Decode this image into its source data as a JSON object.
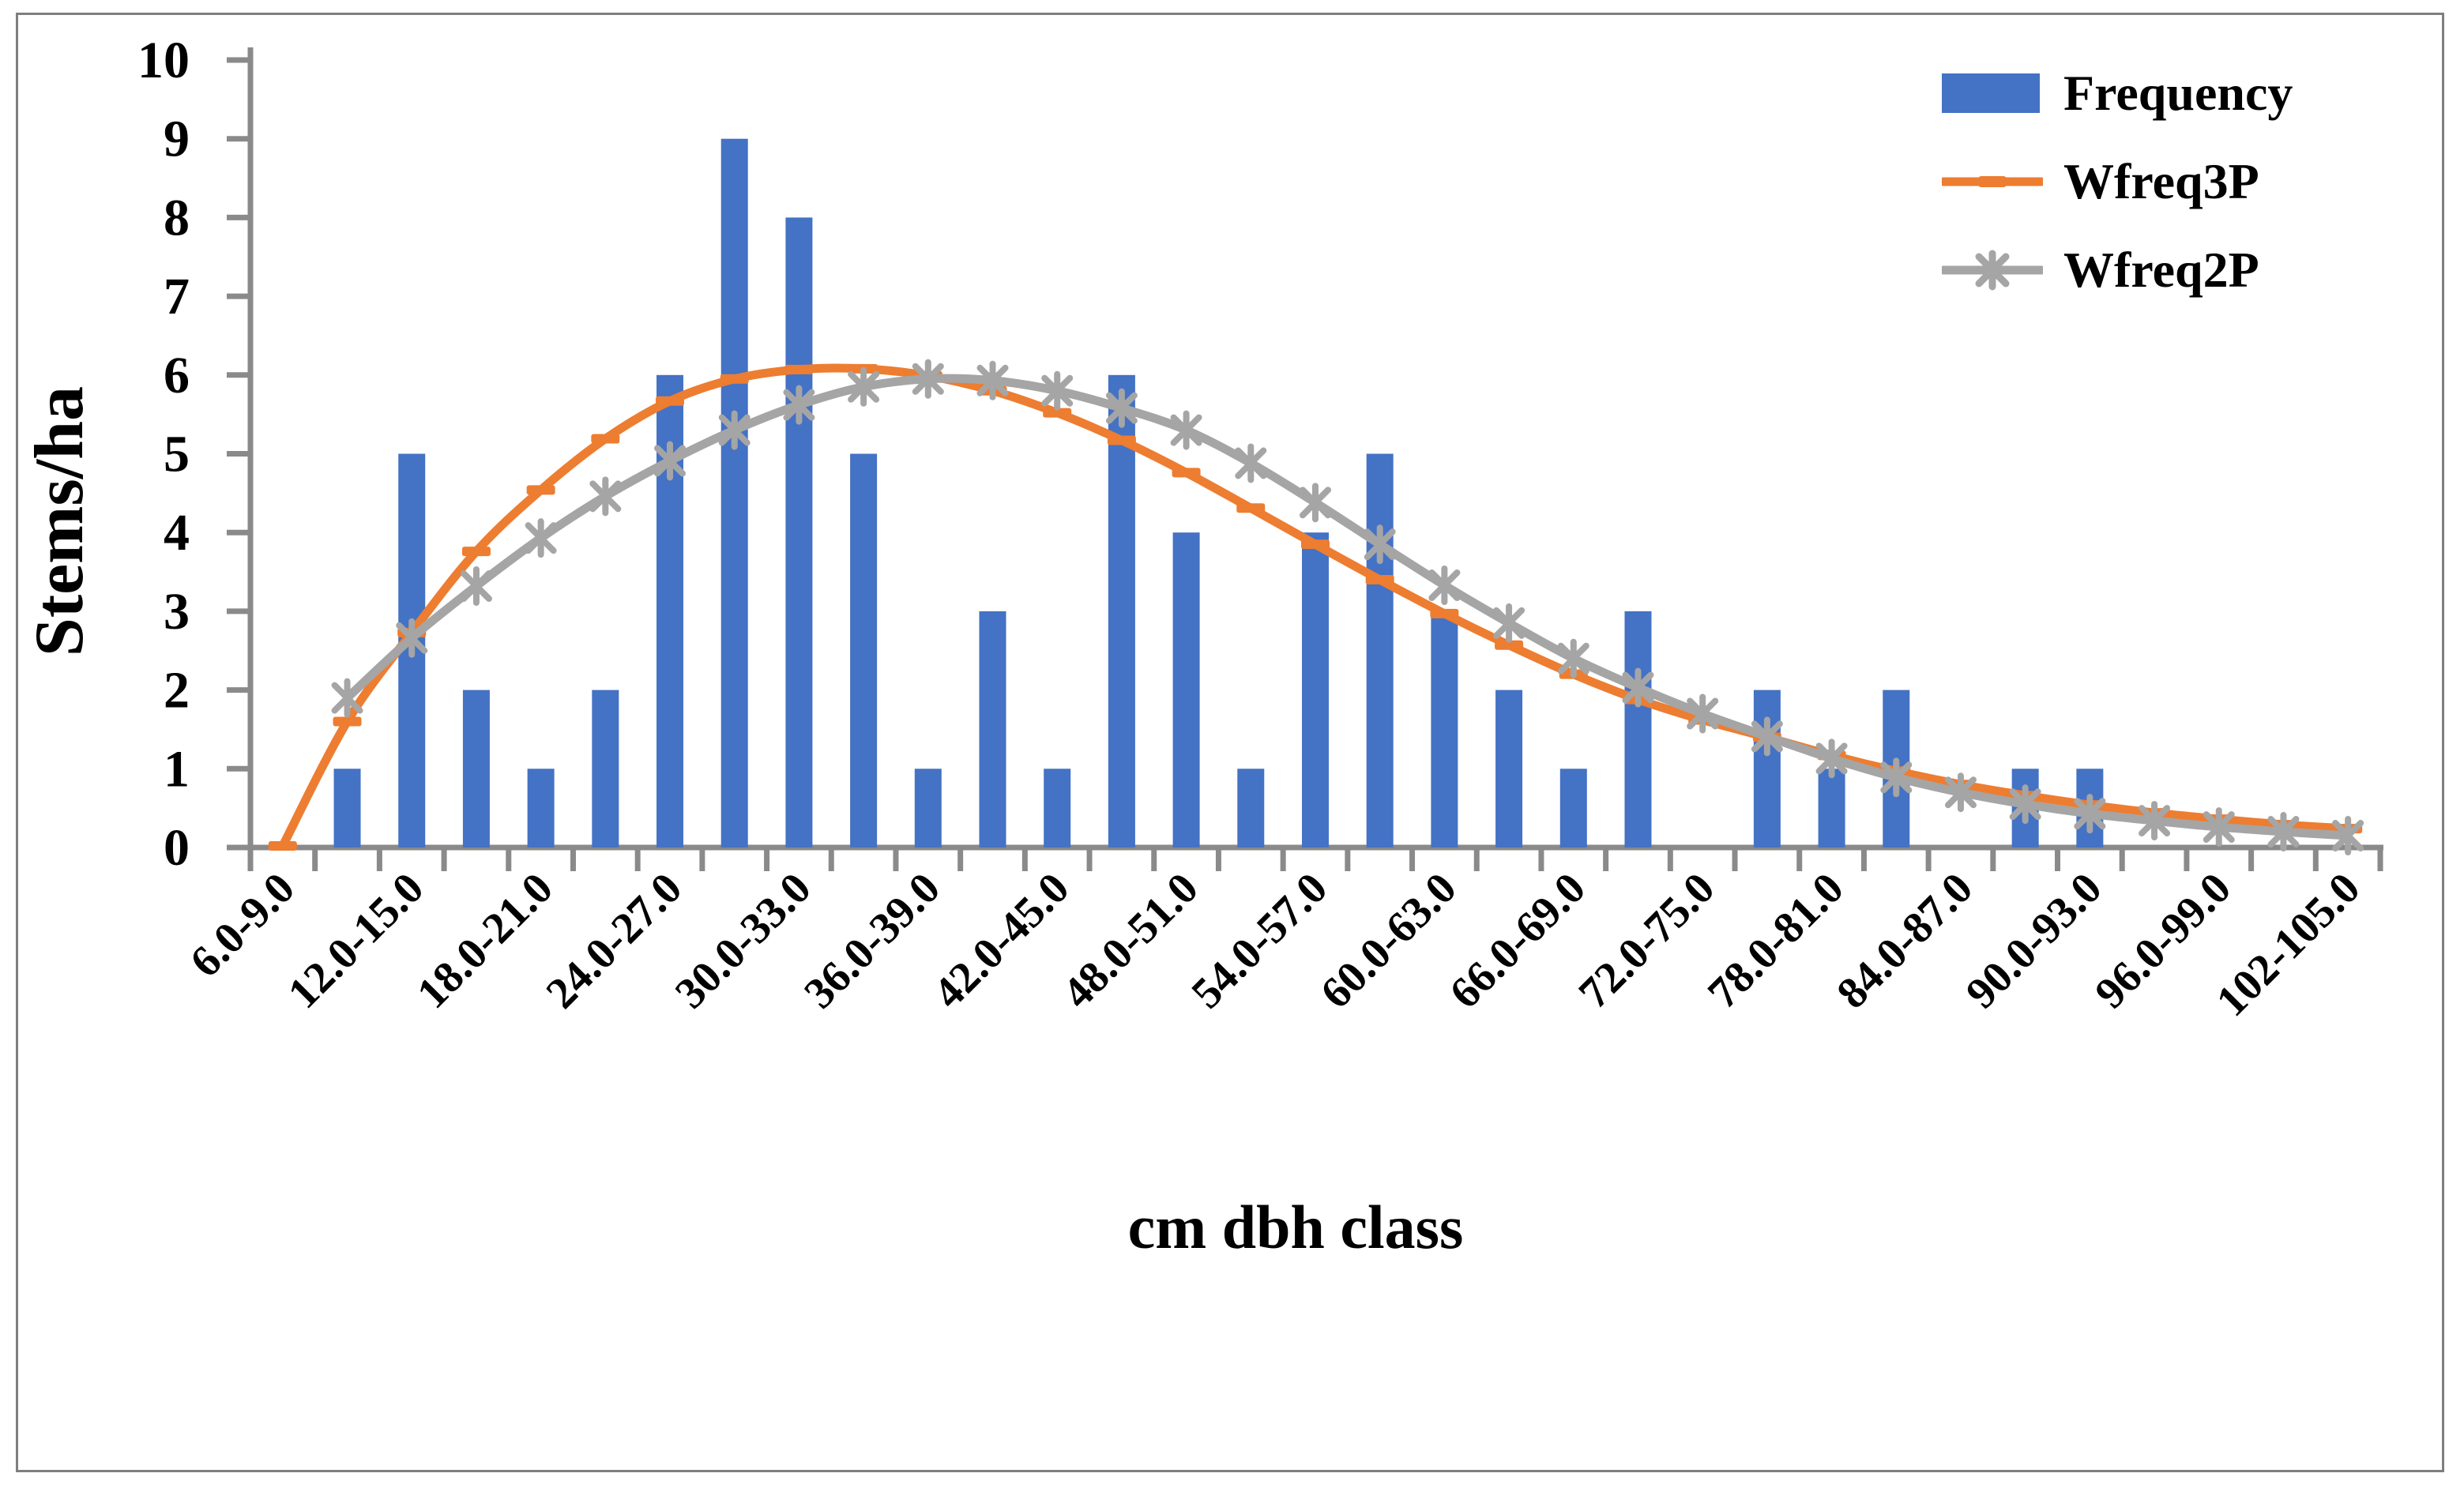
{
  "figure": {
    "background": "#ffffff",
    "border_color": "#7f7f7f",
    "axis_color": "#8a8a8a",
    "text_color": "#000000"
  },
  "chart_data": {
    "type": "bar",
    "subtype": "bar+smooth-line combo",
    "title": "",
    "xlabel": "cm dbh class",
    "ylabel": "Stems/ha",
    "ylim": [
      0,
      10
    ],
    "ytick_step": 1,
    "ytick_labels": [
      "0",
      "1",
      "2",
      "3",
      "4",
      "5",
      "6",
      "7",
      "8",
      "9",
      "10"
    ],
    "n_categories": 33,
    "xtick_labels": [
      "6.0-9.0",
      "12.0-15.0",
      "18.0-21.0",
      "24.0-27.0",
      "30.0-33.0",
      "36.0-39.0",
      "42.0-45.0",
      "48.0-51.0",
      "54.0-57.0",
      "60.0-63.0",
      "66.0-69.0",
      "72.0-75.0",
      "78.0-81.0",
      "84.0-87.0",
      "90.0-93.0",
      "96.0-99.0",
      "102-105.0"
    ],
    "xtick_label_every": 2,
    "grid": "off",
    "legend_position": "top-right",
    "series": [
      {
        "name": "Frequency",
        "type": "bar",
        "color": "#4472C4",
        "values": [
          0,
          1,
          5,
          2,
          1,
          2,
          6,
          9,
          8,
          5,
          1,
          3,
          1,
          6,
          4,
          1,
          4,
          5,
          3,
          2,
          1,
          3,
          0,
          2,
          1,
          2,
          0,
          1,
          1,
          0,
          0,
          0,
          0
        ]
      },
      {
        "name": "Wfreq3P",
        "type": "line",
        "color": "#ED7D31",
        "marker": "dash",
        "values": [
          0.02,
          1.6,
          2.73,
          3.76,
          4.54,
          5.19,
          5.67,
          5.95,
          6.07,
          6.08,
          5.99,
          5.8,
          5.52,
          5.17,
          4.76,
          4.31,
          3.85,
          3.4,
          2.97,
          2.57,
          2.2,
          1.88,
          1.62,
          1.4,
          1.17,
          0.97,
          0.8,
          0.66,
          0.54,
          0.44,
          0.36,
          0.29,
          0.24
        ]
      },
      {
        "name": "Wfreq2P",
        "type": "line",
        "color": "#A5A5A5",
        "marker": "star",
        "values": [
          null,
          1.9,
          2.66,
          3.32,
          3.93,
          4.46,
          4.91,
          5.3,
          5.62,
          5.85,
          5.95,
          5.93,
          5.8,
          5.58,
          5.3,
          4.88,
          4.38,
          3.85,
          3.33,
          2.85,
          2.4,
          2.03,
          1.7,
          1.41,
          1.13,
          0.89,
          0.7,
          0.55,
          0.43,
          0.34,
          0.26,
          0.2,
          0.15
        ]
      }
    ]
  }
}
